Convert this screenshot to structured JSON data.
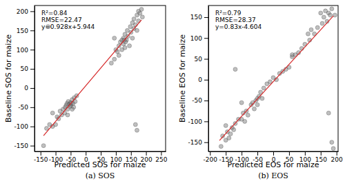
{
  "chart_data": [
    {
      "type": "scatter",
      "x_label": "Predicted SOS for maize",
      "y_label": "Baseline SOS for maize",
      "caption": "(a) SOS",
      "annotations": [
        "R²=0.84",
        "RMSE=22.47",
        "y=0.928x+5.944"
      ],
      "xlim": [
        -170,
        265
      ],
      "ylim": [
        -165,
        215
      ],
      "xticks": [
        -150,
        -100,
        -50,
        0,
        50,
        100,
        150,
        200,
        250
      ],
      "yticks": [
        -150,
        -100,
        -50,
        0,
        50,
        100,
        150,
        200
      ],
      "grid": false,
      "series": [
        {
          "type": "scatter",
          "color": "#808080",
          "marker": "circle",
          "x": [
            -140,
            -130,
            -120,
            -110,
            -100,
            -95,
            -90,
            -85,
            -80,
            -75,
            -70,
            -68,
            -65,
            -62,
            -60,
            -58,
            -55,
            -52,
            -50,
            -50,
            -48,
            -45,
            -42,
            -40,
            -38,
            -35,
            -30,
            -110,
            -60,
            -45,
            -125,
            85,
            95,
            100,
            105,
            110,
            110,
            115,
            120,
            125,
            125,
            130,
            130,
            135,
            138,
            140,
            145,
            148,
            150,
            155,
            155,
            160,
            160,
            165,
            170,
            170,
            175,
            175,
            180,
            185,
            188,
            120,
            128,
            132,
            95,
            165,
            170
          ],
          "values": [
            -150,
            -105,
            -95,
            -100,
            -95,
            -75,
            -80,
            -60,
            -70,
            -55,
            -65,
            -50,
            -45,
            -40,
            -55,
            -35,
            -42,
            -48,
            -38,
            -45,
            -40,
            -30,
            -40,
            -50,
            -25,
            -35,
            -20,
            -65,
            -70,
            -55,
            160,
            65,
            75,
            100,
            95,
            110,
            85,
            120,
            100,
            130,
            115,
            105,
            140,
            125,
            150,
            135,
            110,
            160,
            145,
            170,
            130,
            180,
            155,
            165,
            190,
            150,
            200,
            175,
            195,
            205,
            185,
            125,
            125,
            120,
            130,
            -95,
            -110
          ]
        },
        {
          "type": "line",
          "color": "#d62728",
          "line_style": "solid",
          "x": [
            -140,
            185
          ],
          "values": [
            -124.0,
            177.6
          ]
        }
      ]
    },
    {
      "type": "scatter",
      "x_label": "Predicted EOS for maize",
      "y_label": "Baseline EOS for maize",
      "caption": "(b) EOS",
      "annotations": [
        "R²=0.79",
        "RMSE=28.37",
        "y=0.83x-4.604"
      ],
      "xlim": [
        -205,
        205
      ],
      "ylim": [
        -172,
        178
      ],
      "xticks": [
        -200,
        -150,
        -100,
        -50,
        0,
        50,
        100,
        150,
        200
      ],
      "yticks": [
        -150,
        -100,
        -50,
        0,
        50,
        100,
        150
      ],
      "grid": false,
      "series": [
        {
          "type": "scatter",
          "color": "#808080",
          "marker": "circle",
          "x": [
            -165,
            -160,
            -150,
            -145,
            -140,
            -135,
            -130,
            -125,
            -120,
            -110,
            -100,
            -95,
            -90,
            -85,
            -80,
            -70,
            -65,
            -60,
            -55,
            -50,
            -50,
            -45,
            -40,
            -35,
            -30,
            -20,
            -10,
            0,
            10,
            20,
            30,
            40,
            50,
            60,
            60,
            70,
            80,
            90,
            100,
            110,
            115,
            120,
            130,
            140,
            150,
            155,
            160,
            165,
            170,
            175,
            180,
            185,
            190,
            185,
            175,
            -120,
            -100,
            -150,
            195
          ],
          "values": [
            -160,
            -135,
            -145,
            -125,
            -140,
            -130,
            -115,
            -120,
            -105,
            -95,
            -95,
            -80,
            -100,
            -75,
            -85,
            -60,
            -55,
            -70,
            -50,
            -45,
            -60,
            -40,
            -30,
            -45,
            -20,
            -10,
            -5,
            5,
            0,
            15,
            20,
            25,
            30,
            55,
            60,
            60,
            65,
            75,
            85,
            110,
            95,
            120,
            110,
            125,
            160,
            135,
            150,
            165,
            140,
            160,
            155,
            170,
            -165,
            -150,
            -80,
            25,
            -55,
            -110,
            155
          ]
        },
        {
          "type": "line",
          "color": "#d62728",
          "line_style": "solid",
          "x": [
            -170,
            190
          ],
          "values": [
            -145.7,
            153.1
          ]
        }
      ]
    }
  ]
}
